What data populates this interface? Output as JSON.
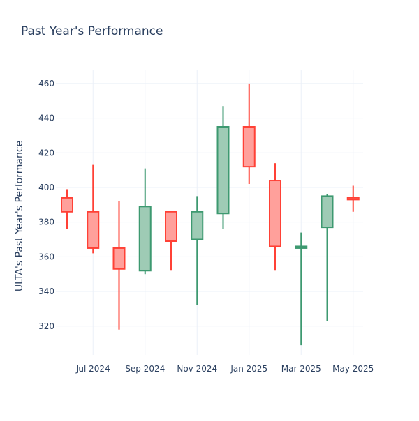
{
  "chart_data": {
    "type": "candlestick",
    "title": "Past Year's Performance",
    "xlabel": "",
    "ylabel": "ULTA's Past Year's Performance",
    "ylim": [
      303,
      468
    ],
    "yticks": [
      320,
      340,
      360,
      380,
      400,
      420,
      440,
      460
    ],
    "xticks": [
      {
        "month": "2024-07",
        "label": "Jul 2024"
      },
      {
        "month": "2024-09",
        "label": "Sep 2024"
      },
      {
        "month": "2024-11",
        "label": "Nov 2024"
      },
      {
        "month": "2025-01",
        "label": "Jan 2025"
      },
      {
        "month": "2025-03",
        "label": "Mar 2025"
      },
      {
        "month": "2025-05",
        "label": "May 2025"
      }
    ],
    "increasing_color": "#3d9970",
    "decreasing_color": "#ff4136",
    "candles": [
      {
        "month": "2024-06",
        "open": 394,
        "high": 399,
        "low": 376,
        "close": 386
      },
      {
        "month": "2024-07",
        "open": 386,
        "high": 413,
        "low": 362,
        "close": 365
      },
      {
        "month": "2024-08",
        "open": 365,
        "high": 392,
        "low": 318,
        "close": 353
      },
      {
        "month": "2024-09",
        "open": 352,
        "high": 411,
        "low": 350,
        "close": 389
      },
      {
        "month": "2024-10",
        "open": 386,
        "high": 386,
        "low": 352,
        "close": 369
      },
      {
        "month": "2024-11",
        "open": 370,
        "high": 395,
        "low": 332,
        "close": 386
      },
      {
        "month": "2024-12",
        "open": 385,
        "high": 447,
        "low": 376,
        "close": 435
      },
      {
        "month": "2025-01",
        "open": 435,
        "high": 460,
        "low": 402,
        "close": 412
      },
      {
        "month": "2025-02",
        "open": 404,
        "high": 414,
        "low": 352,
        "close": 366
      },
      {
        "month": "2025-03",
        "open": 365,
        "high": 374,
        "low": 309,
        "close": 366
      },
      {
        "month": "2025-04",
        "open": 377,
        "high": 396,
        "low": 323,
        "close": 395
      },
      {
        "month": "2025-05",
        "open": 394,
        "high": 401,
        "low": 386,
        "close": 393
      }
    ]
  }
}
